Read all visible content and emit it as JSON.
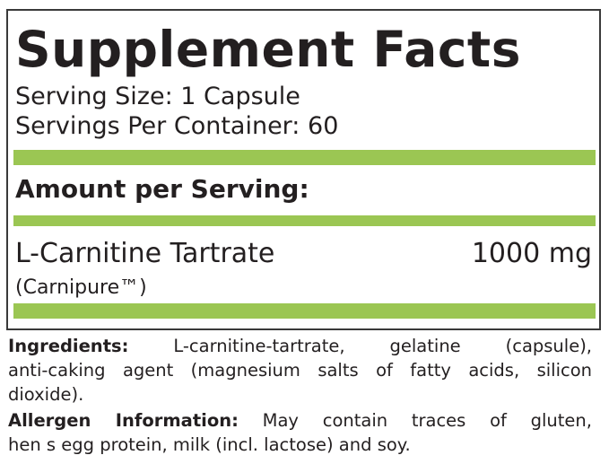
{
  "panel": {
    "title": "Supplement Facts",
    "serving_size_label": "Serving Size:",
    "serving_size_value": "1 Capsule",
    "servings_per_container_label": "Servings Per Container:",
    "servings_per_container_value": "60",
    "amount_per_serving": "Amount per Serving:",
    "ingredient": {
      "name": "L-Carnitine Tartrate",
      "sub": "(Carnipure™)",
      "amount": "1000 mg"
    },
    "bar_color": "#9bc653"
  },
  "ingredients": {
    "label": "Ingredients:",
    "lines": [
      "L-carnitine-tartrate, gelatine (capsule),",
      "anti-caking agent (magnesium salts of fatty acids, silicon",
      "dioxide)."
    ]
  },
  "allergen": {
    "label": "Allergen Information:",
    "lines": [
      "May contain traces of gluten,",
      "hen s egg protein, milk (incl. lactose) and soy."
    ]
  }
}
